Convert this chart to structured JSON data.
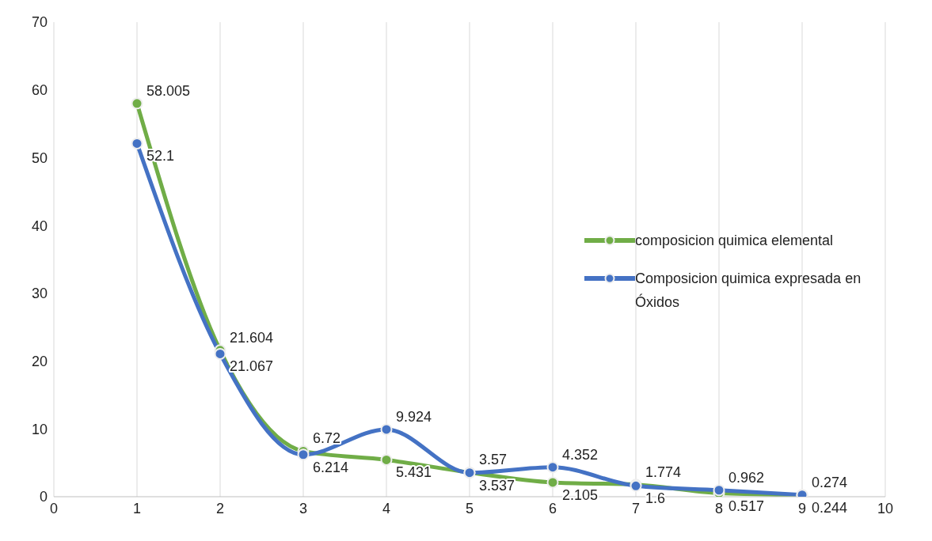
{
  "chart_data": {
    "type": "line",
    "x": [
      1,
      2,
      3,
      4,
      5,
      6,
      7,
      8,
      9
    ],
    "series": [
      {
        "name": "composicion quimica elemental",
        "color": "#70ad47",
        "values": [
          58.005,
          21.604,
          6.72,
          5.431,
          3.57,
          2.105,
          1.774,
          0.517,
          0.244
        ]
      },
      {
        "name": "Composicion quimica expresada en Óxidos",
        "color": "#4472c4",
        "values": [
          52.1,
          21.067,
          6.214,
          9.924,
          3.537,
          4.352,
          1.6,
          0.962,
          0.274
        ]
      }
    ],
    "xlim": [
      0,
      10
    ],
    "xticks": [
      0,
      1,
      2,
      3,
      4,
      5,
      6,
      7,
      8,
      9,
      10
    ],
    "ylim": [
      0,
      70
    ],
    "yticks": [
      0,
      10,
      20,
      30,
      40,
      50,
      60,
      70
    ],
    "grid": "x",
    "legend": "right",
    "marker": "circle",
    "line_style": "solid",
    "data_labels": true
  }
}
